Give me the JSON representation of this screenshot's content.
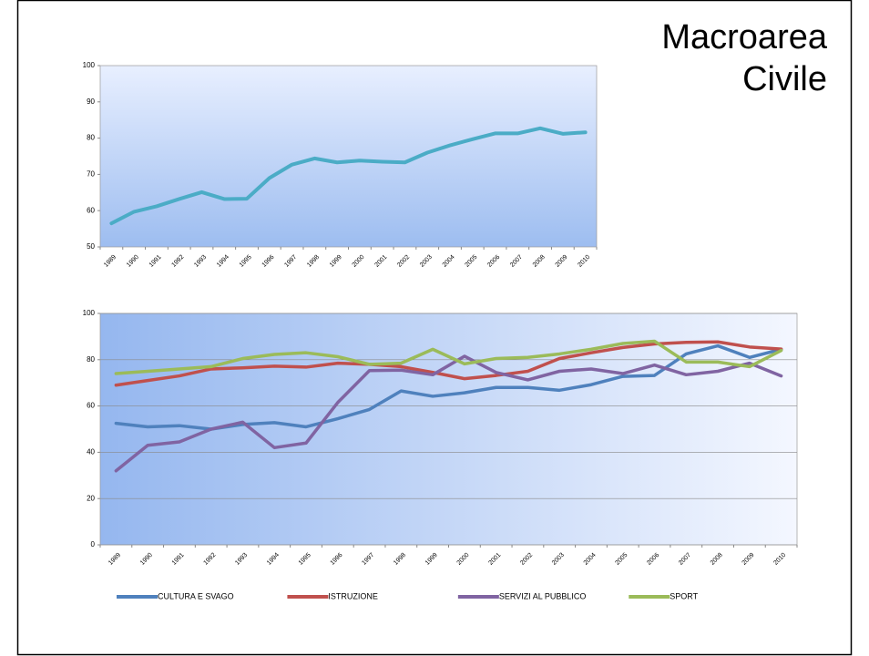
{
  "title": "Macroarea Civile",
  "chart_data": [
    {
      "type": "line",
      "categories": [
        "1989",
        "1990",
        "1991",
        "1992",
        "1993",
        "1994",
        "1995",
        "1996",
        "1997",
        "1998",
        "1999",
        "2000",
        "2001",
        "2002",
        "2003",
        "2004",
        "2005",
        "2006",
        "2007",
        "2008",
        "2009",
        "2010"
      ],
      "values": [
        56.5,
        59.7,
        61.2,
        63.2,
        65.1,
        63.2,
        63.3,
        69,
        72.7,
        74.4,
        73.3,
        73.8,
        73.5,
        73.3,
        76,
        78,
        79.7,
        81.3,
        81.3,
        82.7,
        81.2,
        81.6
      ],
      "color": "#4bacc6",
      "ylim": [
        50,
        100
      ],
      "yticks": [
        50,
        60,
        70,
        80,
        90,
        100
      ],
      "grid": false
    },
    {
      "type": "line",
      "categories": [
        "1989",
        "1990",
        "1991",
        "1992",
        "1993",
        "1994",
        "1995",
        "1996",
        "1997",
        "1998",
        "1999",
        "2000",
        "2001",
        "2002",
        "2003",
        "2004",
        "2005",
        "2006",
        "2007",
        "2008",
        "2009",
        "2010"
      ],
      "series": [
        {
          "name": "CULTURA E SVAGO",
          "color": "#4f81bd",
          "values": [
            52.5,
            51,
            51.5,
            50,
            52,
            52.8,
            51,
            54.5,
            58.5,
            66.5,
            64.2,
            65.7,
            68,
            68,
            66.8,
            69.2,
            72.8,
            73.2,
            82.5,
            86,
            81,
            84.5
          ]
        },
        {
          "name": "ISTRUZIONE",
          "color": "#c0504d",
          "values": [
            69,
            71,
            73,
            76,
            76.5,
            77.2,
            76.8,
            78.5,
            78,
            77,
            74.5,
            71.8,
            73.2,
            75,
            80.5,
            83,
            85.3,
            86.8,
            87.5,
            87.7,
            85.5,
            84.6
          ]
        },
        {
          "name": "SERVIZI AL PUBBLICO",
          "color": "#8064a2",
          "values": [
            32,
            43,
            44.5,
            50,
            53,
            42,
            44,
            61.5,
            75.3,
            75.5,
            73.5,
            81.5,
            74.5,
            71.3,
            75,
            76,
            74,
            77.7,
            73.5,
            75,
            78.5,
            73
          ]
        },
        {
          "name": "SPORT",
          "color": "#9bbb59",
          "values": [
            74,
            75,
            76,
            77,
            80.5,
            82.3,
            83,
            81.3,
            78,
            78.5,
            84.5,
            78.2,
            80.5,
            81,
            82.5,
            84.5,
            87,
            88,
            79,
            79,
            77,
            84
          ]
        }
      ],
      "ylim": [
        0,
        100
      ],
      "yticks": [
        0,
        20,
        40,
        60,
        80,
        100
      ],
      "grid": true,
      "legend": "bottom"
    }
  ]
}
